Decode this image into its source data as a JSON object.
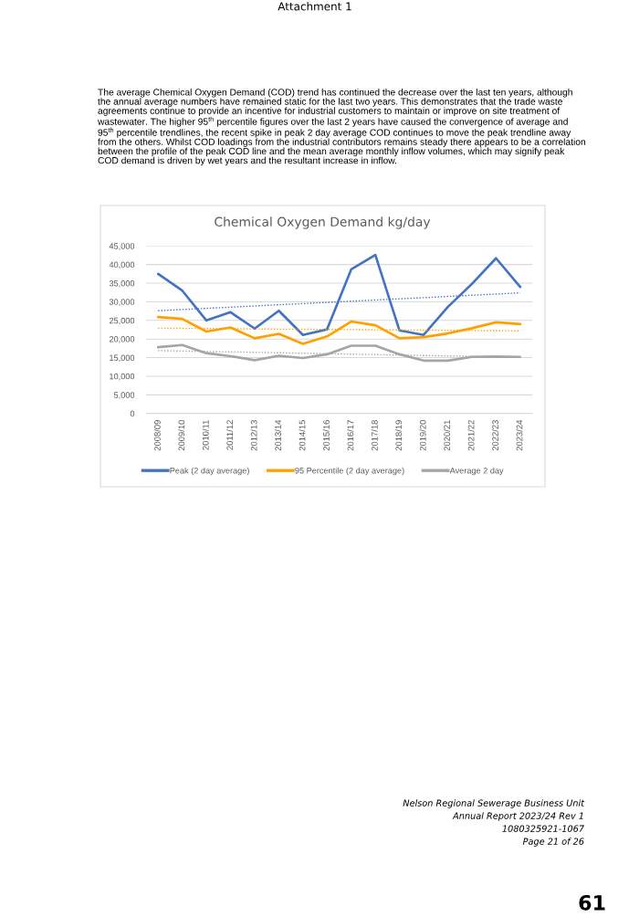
{
  "chart_data": {
    "type": "line",
    "title": "Chemical Oxygen Demand kg/day",
    "categories": [
      "2008/09",
      "2009/10",
      "2010/11",
      "2011/12",
      "2012/13",
      "2013/14",
      "2014/15",
      "2015/16",
      "2016/17",
      "2017/18",
      "2018/19",
      "2019/20",
      "2020/21",
      "2021/22",
      "2022/23",
      "2023/24"
    ],
    "series": [
      {
        "name": "Peak (2 day average)",
        "color": "#4472c4",
        "values": [
          37500,
          33000,
          25000,
          27200,
          22800,
          27600,
          21100,
          22600,
          38700,
          42600,
          22300,
          21100,
          28600,
          34800,
          41700,
          34000
        ]
      },
      {
        "name": "95 Percentile (2 day average)",
        "color": "#ffa000",
        "values": [
          25900,
          25400,
          22000,
          23100,
          20200,
          21400,
          18700,
          20700,
          24700,
          23700,
          20200,
          20500,
          21500,
          22900,
          24500,
          24000
        ]
      },
      {
        "name": "Average 2 day",
        "color": "#a5a5a5",
        "values": [
          17800,
          18400,
          16200,
          15400,
          14300,
          15500,
          14900,
          15900,
          18200,
          18200,
          15900,
          14200,
          14200,
          15200,
          15300,
          15200
        ]
      },
      {
        "type": "line",
        "color": "#4472c4",
        "line_style": "dotted",
        "x": [
          "2008/09",
          "2023/24"
        ],
        "values": [
          27600,
          32400
        ]
      },
      {
        "type": "line",
        "color": "#ffa000",
        "line_style": "dotted",
        "x": [
          "2008/09",
          "2023/24"
        ],
        "values": [
          22900,
          22200
        ]
      },
      {
        "type": "line",
        "color": "#a5a5a5",
        "line_style": "dotted",
        "x": [
          "2008/09",
          "2023/24"
        ],
        "values": [
          16900,
          15100
        ]
      }
    ],
    "ylim": [
      0,
      45000
    ],
    "yticks": [
      0,
      {
        "value": 5000,
        "label": "5,000"
      },
      {
        "value": 10000,
        "label": "10,000"
      },
      {
        "value": 15000,
        "label": "15,000"
      },
      {
        "value": 20000,
        "label": "20,000"
      },
      {
        "value": 25000,
        "label": "25,000"
      },
      {
        "value": 30000,
        "label": "30,000"
      },
      {
        "value": 35000,
        "label": "35,000"
      },
      {
        "value": 40000,
        "label": "40,000"
      },
      {
        "value": 45000,
        "label": "45,000"
      }
    ],
    "grid": "y",
    "legend": "bottom",
    "line_style": "solid",
    "annotations": [
      "Attachment 1",
      "The average Chemical Oxygen Demand (COD) trend has continued the decrease over the last ten years, although the annual average numbers have remained static for the last two years. This demonstrates that the trade waste agreements continue to provide an incentive for industrial customers to maintain or improve on site treatment of wastewater. The higher 95$^{th}$ percentile figures over the last 2 years have caused the convergence of average and 95$^{th}$ percentile trendlines, the recent spike in peak 2 day average COD continues to move the peak trendline away from the others. Whilst COD loadings from the industrial contributors remains steady there appears to be a correlation between the profile of the peak COD line and the mean average monthly inflow volumes, which may signify peak COD demand is driven by wet years and the resultant increase in inflow.",
      "Nelson Regional Sewerage Business Unit",
      "Annual Report 2023/24 Rev 1",
      "1080325921-1067",
      "Page 21 of 26",
      "61"
    ]
  }
}
